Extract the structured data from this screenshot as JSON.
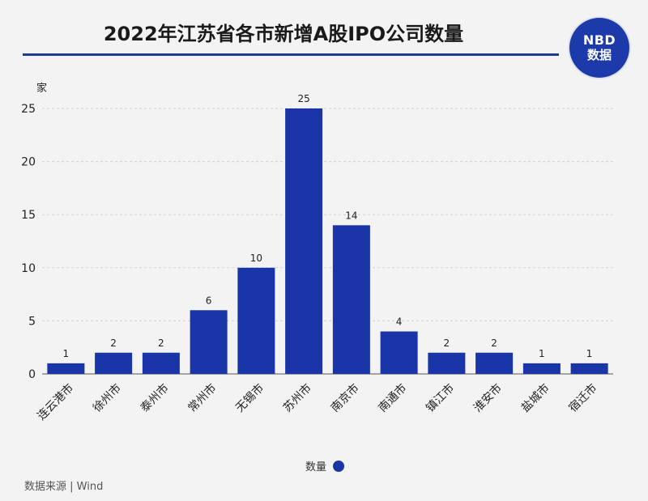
{
  "header": {
    "title": "2022年江苏省各市新增A股IPO公司数量",
    "logo_line1": "NBD",
    "logo_line2": "数据"
  },
  "colors": {
    "bar": "#1a35a8",
    "title_rule": "#1f3a93",
    "logo_bg": "#1c3aa9",
    "background": "#f3f3f3"
  },
  "chart_data": {
    "type": "bar",
    "title": "2022年江苏省各市新增A股IPO公司数量",
    "ylabel": "家",
    "xlabel": "",
    "categories": [
      "连云港市",
      "徐州市",
      "泰州市",
      "常州市",
      "无锡市",
      "苏州市",
      "南京市",
      "南通市",
      "镇江市",
      "淮安市",
      "盐城市",
      "宿迁市"
    ],
    "series": [
      {
        "name": "数量",
        "values": [
          1,
          2,
          2,
          6,
          10,
          25,
          14,
          4,
          2,
          2,
          1,
          1
        ]
      }
    ],
    "ylim": [
      0,
      25
    ],
    "yticks": [
      0,
      5,
      10,
      15,
      20,
      25
    ],
    "grid": true,
    "legend": "bottom-center"
  },
  "legend": {
    "label": "数量"
  },
  "source": "数据来源 | Wind"
}
